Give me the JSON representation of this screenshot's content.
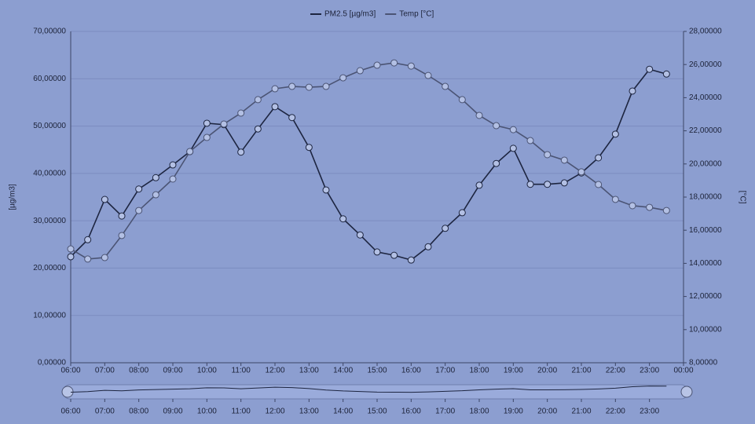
{
  "chart_data": {
    "type": "line",
    "x": [
      6,
      6.5,
      7,
      7.5,
      8,
      8.5,
      9,
      9.5,
      10,
      10.5,
      11,
      11.5,
      12,
      12.5,
      13,
      13.5,
      14,
      14.5,
      15,
      15.5,
      16,
      16.5,
      17,
      17.5,
      18,
      18.5,
      19,
      19.5,
      20,
      20.5,
      21,
      21.5,
      22,
      22.5,
      23,
      23.5
    ],
    "series": [
      {
        "name": "PM2.5 [µg/m3]",
        "color": "#1d2540",
        "values": [
          22.4,
          26.0,
          34.5,
          31.0,
          36.7,
          39.1,
          41.8,
          44.6,
          50.6,
          50.3,
          44.5,
          49.4,
          54.1,
          51.8,
          45.5,
          36.5,
          30.4,
          27.0,
          23.4,
          22.7,
          21.7,
          24.5,
          28.4,
          31.7,
          37.5,
          42.1,
          45.3,
          37.7,
          37.7,
          38.0,
          40.1,
          43.3,
          48.3,
          57.4,
          62.0,
          61.0
        ]
      },
      {
        "name": "Temp [°C]",
        "color": "#4b5474",
        "axis": "y2",
        "values": [
          14.87,
          14.26,
          14.35,
          15.68,
          17.19,
          18.14,
          19.09,
          20.75,
          21.6,
          22.41,
          23.07,
          23.88,
          24.54,
          24.68,
          24.63,
          24.68,
          25.2,
          25.63,
          25.96,
          26.1,
          25.91,
          25.34,
          24.68,
          23.88,
          22.93,
          22.31,
          22.07,
          21.41,
          20.56,
          20.23,
          19.52,
          18.76,
          17.86,
          17.48,
          17.38,
          17.19
        ]
      }
    ],
    "ylabel": "[µg/m3]",
    "y2label": "[°C]",
    "xlim": [
      6,
      24
    ],
    "xticks": [
      {
        "value": 6,
        "label": "06:00"
      },
      {
        "value": 7,
        "label": "07:00"
      },
      {
        "value": 8,
        "label": "08:00"
      },
      {
        "value": 9,
        "label": "09:00"
      },
      {
        "value": 10,
        "label": "10:00"
      },
      {
        "value": 11,
        "label": "11:00"
      },
      {
        "value": 12,
        "label": "12:00"
      },
      {
        "value": 13,
        "label": "13:00"
      },
      {
        "value": 14,
        "label": "14:00"
      },
      {
        "value": 15,
        "label": "15:00"
      },
      {
        "value": 16,
        "label": "16:00"
      },
      {
        "value": 17,
        "label": "17:00"
      },
      {
        "value": 18,
        "label": "18:00"
      },
      {
        "value": 19,
        "label": "19:00"
      },
      {
        "value": 20,
        "label": "20:00"
      },
      {
        "value": 21,
        "label": "21:00"
      },
      {
        "value": 22,
        "label": "22:00"
      },
      {
        "value": 23,
        "label": "23:00"
      },
      {
        "value": 24,
        "label": "00:00"
      }
    ],
    "ylim": [
      0,
      70
    ],
    "yticks": [
      {
        "value": 0,
        "label": "0,00000"
      },
      {
        "value": 10,
        "label": "10,00000"
      },
      {
        "value": 20,
        "label": "20,00000"
      },
      {
        "value": 30,
        "label": "30,00000"
      },
      {
        "value": 40,
        "label": "40,00000"
      },
      {
        "value": 50,
        "label": "50,00000"
      },
      {
        "value": 60,
        "label": "60,00000"
      },
      {
        "value": 70,
        "label": "70,00000"
      }
    ],
    "y2lim": [
      8,
      28
    ],
    "y2ticks": [
      {
        "value": 8,
        "label": "8,00000"
      },
      {
        "value": 10,
        "label": "10,00000"
      },
      {
        "value": 12,
        "label": "12,00000"
      },
      {
        "value": 14,
        "label": "14,00000"
      },
      {
        "value": 16,
        "label": "16,00000"
      },
      {
        "value": 18,
        "label": "18,00000"
      },
      {
        "value": 20,
        "label": "20,00000"
      },
      {
        "value": 22,
        "label": "22,00000"
      },
      {
        "value": 24,
        "label": "24,00000"
      },
      {
        "value": 26,
        "label": "26,00000"
      },
      {
        "value": 28,
        "label": "28,00000"
      }
    ],
    "grid": true,
    "legend": "top"
  }
}
